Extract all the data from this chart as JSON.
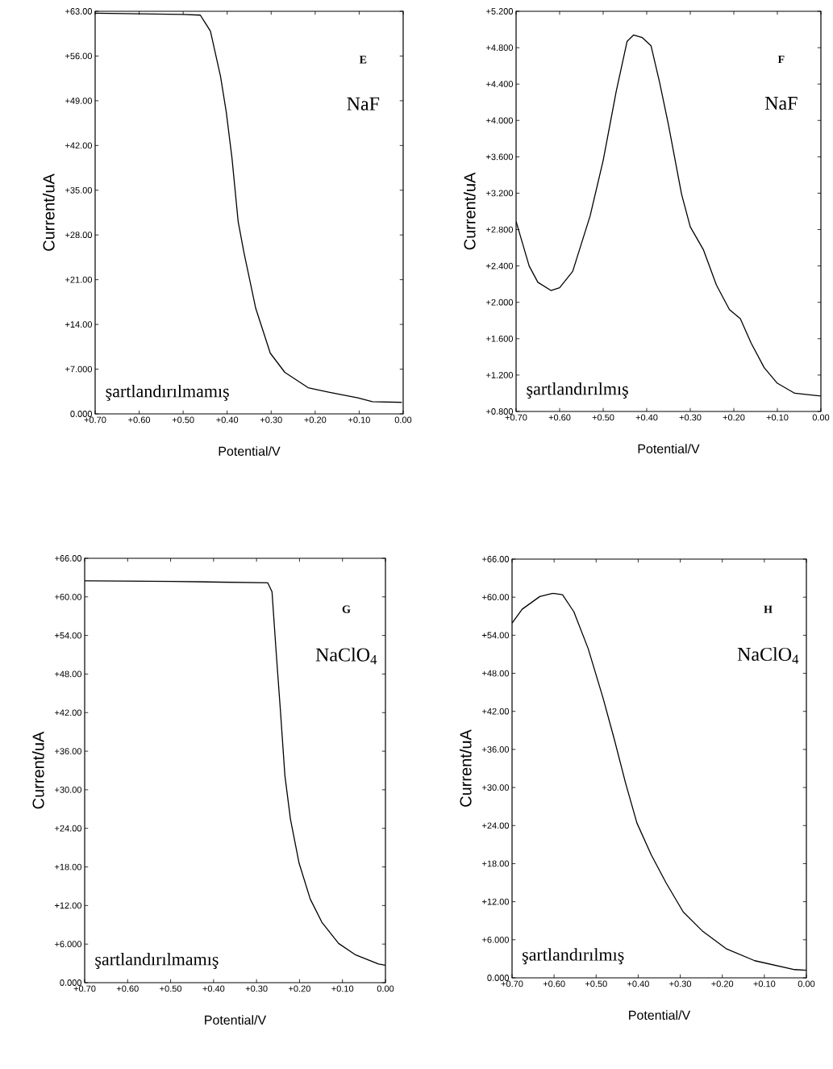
{
  "chart_data": [
    {
      "type": "line",
      "xlabel": "Potential/V",
      "ylabel": "Current/uA",
      "annotations": [
        "E",
        "NaF",
        "şartlandırılmamış"
      ],
      "color": "#000000",
      "xlim": [
        0.7,
        0.0
      ],
      "ylim": [
        0,
        63
      ],
      "xticks": [
        {
          "value": 0.7,
          "label": "+0.70"
        },
        {
          "value": 0.6,
          "label": "+0.60"
        },
        {
          "value": 0.5,
          "label": "+0.50"
        },
        {
          "value": 0.4,
          "label": "+0.40"
        },
        {
          "value": 0.3,
          "label": "+0.30"
        },
        {
          "value": 0.2,
          "label": "+0.20"
        },
        {
          "value": 0.1,
          "label": "+0.10"
        },
        {
          "value": 0,
          "label": "0.00"
        }
      ],
      "yticks": [
        {
          "value": 0,
          "label": "0.000"
        },
        {
          "value": 7,
          "label": "+7.000"
        },
        {
          "value": 14,
          "label": "+14.00"
        },
        {
          "value": 21,
          "label": "+21.00"
        },
        {
          "value": 28,
          "label": "+28.00"
        },
        {
          "value": 35,
          "label": "+35.00"
        },
        {
          "value": 42,
          "label": "+42.00"
        },
        {
          "value": 49,
          "label": "+49.00"
        },
        {
          "value": 56,
          "label": "+56.00"
        },
        {
          "value": 63,
          "label": "+63.00"
        }
      ],
      "x": [
        0.7,
        0.6,
        0.5,
        0.461,
        0.438,
        0.415,
        0.402,
        0.389,
        0.375,
        0.362,
        0.335,
        0.302,
        0.269,
        0.216,
        0.169,
        0.103,
        0.07,
        0.003
      ],
      "values": [
        62.7,
        62.6,
        62.5,
        62.4,
        59.9,
        52.8,
        47.2,
        40.0,
        30.1,
        25.3,
        16.5,
        9.5,
        6.5,
        4.1,
        3.4,
        2.5,
        1.9,
        1.8
      ]
    },
    {
      "type": "line",
      "xlabel": "Potential/V",
      "ylabel": "Current/uA",
      "annotations": [
        "F",
        "NaF",
        "şartlandırılmış"
      ],
      "color": "#000000",
      "xlim": [
        0.7,
        0.0
      ],
      "ylim": [
        0.8,
        5.2
      ],
      "xticks": [
        {
          "value": 0.7,
          "label": "+0.70"
        },
        {
          "value": 0.6,
          "label": "+0.60"
        },
        {
          "value": 0.5,
          "label": "+0.50"
        },
        {
          "value": 0.4,
          "label": "+0.40"
        },
        {
          "value": 0.3,
          "label": "+0.30"
        },
        {
          "value": 0.2,
          "label": "+0.20"
        },
        {
          "value": 0.1,
          "label": "+0.10"
        },
        {
          "value": 0,
          "label": "0.00"
        }
      ],
      "yticks": [
        {
          "value": 0.8,
          "label": "+0.800"
        },
        {
          "value": 1.2,
          "label": "+1.200"
        },
        {
          "value": 1.6,
          "label": "+1.600"
        },
        {
          "value": 2.0,
          "label": "+2.000"
        },
        {
          "value": 2.4,
          "label": "+2.400"
        },
        {
          "value": 2.8,
          "label": "+2.800"
        },
        {
          "value": 3.2,
          "label": "+3.200"
        },
        {
          "value": 3.6,
          "label": "+3.600"
        },
        {
          "value": 4.0,
          "label": "+4.000"
        },
        {
          "value": 4.4,
          "label": "+4.400"
        },
        {
          "value": 4.8,
          "label": "+4.800"
        },
        {
          "value": 5.2,
          "label": "+5.200"
        }
      ],
      "x": [
        0.7,
        0.67,
        0.65,
        0.62,
        0.6,
        0.57,
        0.53,
        0.5,
        0.47,
        0.445,
        0.43,
        0.41,
        0.39,
        0.37,
        0.35,
        0.32,
        0.3,
        0.27,
        0.24,
        0.21,
        0.185,
        0.16,
        0.13,
        0.1,
        0.06,
        0.0
      ],
      "values": [
        2.89,
        2.4,
        2.22,
        2.13,
        2.16,
        2.34,
        2.95,
        3.56,
        4.32,
        4.87,
        4.94,
        4.91,
        4.82,
        4.41,
        3.95,
        3.19,
        2.83,
        2.58,
        2.19,
        1.92,
        1.82,
        1.55,
        1.28,
        1.11,
        1.0,
        0.97
      ]
    },
    {
      "type": "line",
      "xlabel": "Potential/V",
      "ylabel": "Current/uA",
      "annotations": [
        "G",
        "NaClO$_{4}$",
        "şartlandırılmamış"
      ],
      "color": "#000000",
      "xlim": [
        0.7,
        0.0
      ],
      "ylim": [
        0,
        66
      ],
      "xticks": [
        {
          "value": 0.7,
          "label": "+0.70"
        },
        {
          "value": 0.6,
          "label": "+0.60"
        },
        {
          "value": 0.5,
          "label": "+0.50"
        },
        {
          "value": 0.4,
          "label": "+0.40"
        },
        {
          "value": 0.3,
          "label": "+0.30"
        },
        {
          "value": 0.2,
          "label": "+0.20"
        },
        {
          "value": 0.1,
          "label": "+0.10"
        },
        {
          "value": 0,
          "label": "0.00"
        }
      ],
      "yticks": [
        {
          "value": 0,
          "label": "0.000"
        },
        {
          "value": 6,
          "label": "+6.000"
        },
        {
          "value": 12,
          "label": "+12.00"
        },
        {
          "value": 18,
          "label": "+18.00"
        },
        {
          "value": 24,
          "label": "+24.00"
        },
        {
          "value": 30,
          "label": "+30.00"
        },
        {
          "value": 36,
          "label": "+36.00"
        },
        {
          "value": 42,
          "label": "+42.00"
        },
        {
          "value": 48,
          "label": "+48.00"
        },
        {
          "value": 54,
          "label": "+54.00"
        },
        {
          "value": 60,
          "label": "+60.00"
        },
        {
          "value": 66,
          "label": "+66.00"
        }
      ],
      "x": [
        0.7,
        0.5,
        0.274,
        0.264,
        0.254,
        0.244,
        0.234,
        0.221,
        0.201,
        0.175,
        0.148,
        0.109,
        0.069,
        0.016,
        0.0
      ],
      "values": [
        62.5,
        62.4,
        62.2,
        60.8,
        51.1,
        41.9,
        32.2,
        25.4,
        18.6,
        13.0,
        9.4,
        6.1,
        4.3,
        2.9,
        2.7
      ]
    },
    {
      "type": "line",
      "xlabel": "Potential/V",
      "ylabel": "Current/uA",
      "annotations": [
        "H",
        "NaClO$_{4}$",
        "şartlandırılmış"
      ],
      "color": "#000000",
      "xlim": [
        0.7,
        0.0
      ],
      "ylim": [
        0,
        66
      ],
      "xticks": [
        {
          "value": 0.7,
          "label": "+0.70"
        },
        {
          "value": 0.6,
          "label": "+0.60"
        },
        {
          "value": 0.5,
          "label": "+0.50"
        },
        {
          "value": 0.4,
          "label": "+0.40"
        },
        {
          "value": 0.3,
          "label": "+0.30"
        },
        {
          "value": 0.2,
          "label": "+0.20"
        },
        {
          "value": 0.1,
          "label": "+0.10"
        },
        {
          "value": 0,
          "label": "0.00"
        }
      ],
      "yticks": [
        {
          "value": 0,
          "label": "0.000"
        },
        {
          "value": 6,
          "label": "+6.000"
        },
        {
          "value": 12,
          "label": "+12.00"
        },
        {
          "value": 18,
          "label": "+18.00"
        },
        {
          "value": 24,
          "label": "+24.00"
        },
        {
          "value": 30,
          "label": "+30.00"
        },
        {
          "value": 36,
          "label": "+36.00"
        },
        {
          "value": 42,
          "label": "+42.00"
        },
        {
          "value": 48,
          "label": "+48.00"
        },
        {
          "value": 54,
          "label": "+54.00"
        },
        {
          "value": 60,
          "label": "+60.00"
        },
        {
          "value": 66,
          "label": "+66.00"
        }
      ],
      "x": [
        0.7,
        0.676,
        0.634,
        0.603,
        0.58,
        0.553,
        0.519,
        0.484,
        0.458,
        0.43,
        0.403,
        0.369,
        0.334,
        0.293,
        0.246,
        0.191,
        0.123,
        0.028,
        0.0
      ],
      "values": [
        55.9,
        58.1,
        60.1,
        60.6,
        60.4,
        57.7,
        51.9,
        44.2,
        37.9,
        30.7,
        24.4,
        19.4,
        15.0,
        10.4,
        7.3,
        4.6,
        2.7,
        1.3,
        1.2
      ]
    }
  ]
}
